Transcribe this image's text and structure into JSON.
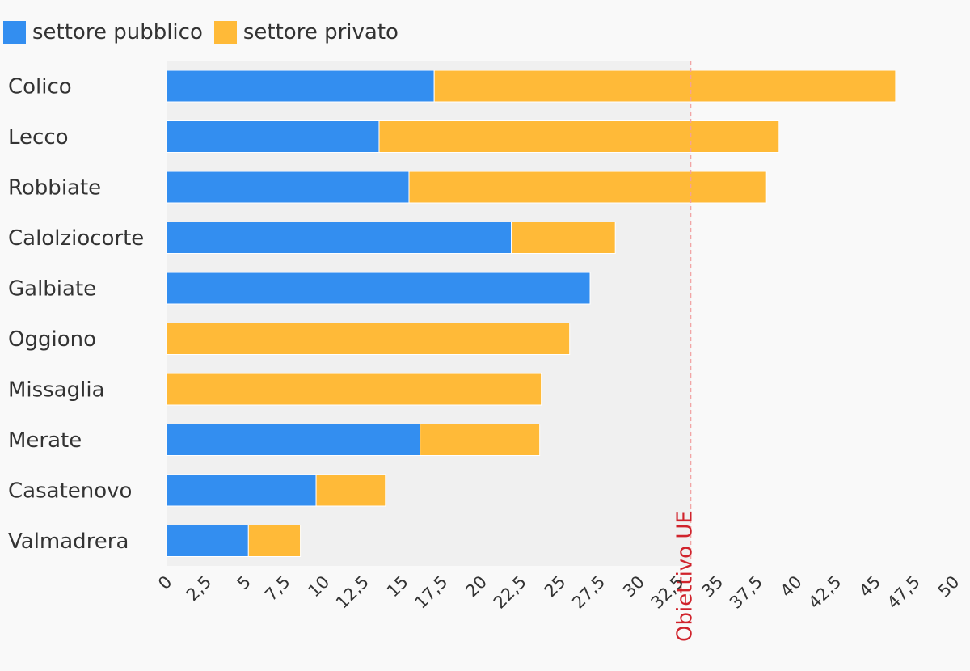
{
  "chart_data": {
    "type": "bar",
    "orientation": "horizontal",
    "stacked": true,
    "categories": [
      "Colico",
      "Lecco",
      "Robbiate",
      "Calolziocorte",
      "Galbiate",
      "Oggiono",
      "Missaglia",
      "Merate",
      "Casatenovo",
      "Valmadrera"
    ],
    "series": [
      {
        "name": "settore pubblico",
        "color": "#338ef0",
        "values": [
          17.0,
          13.5,
          15.4,
          21.9,
          26.9,
          0,
          0,
          16.1,
          9.5,
          5.2
        ]
      },
      {
        "name": "settore privato",
        "color": "#ffba38",
        "values": [
          29.3,
          25.4,
          22.7,
          6.6,
          0,
          25.6,
          23.8,
          7.6,
          4.4,
          3.3
        ]
      }
    ],
    "xlim": [
      0,
      50
    ],
    "xticks": [
      "0",
      "2,5",
      "5",
      "7,5",
      "10",
      "12,5",
      "15",
      "17,5",
      "20",
      "22,5",
      "25",
      "27,5",
      "30",
      "32,5",
      "35",
      "37,5",
      "40",
      "42,5",
      "45",
      "47,5",
      "50"
    ],
    "reference_line": {
      "value": 33.3,
      "label": "Obiettivo UE",
      "color": "#d0232c"
    },
    "legend_position": "top-left",
    "grid": false
  }
}
